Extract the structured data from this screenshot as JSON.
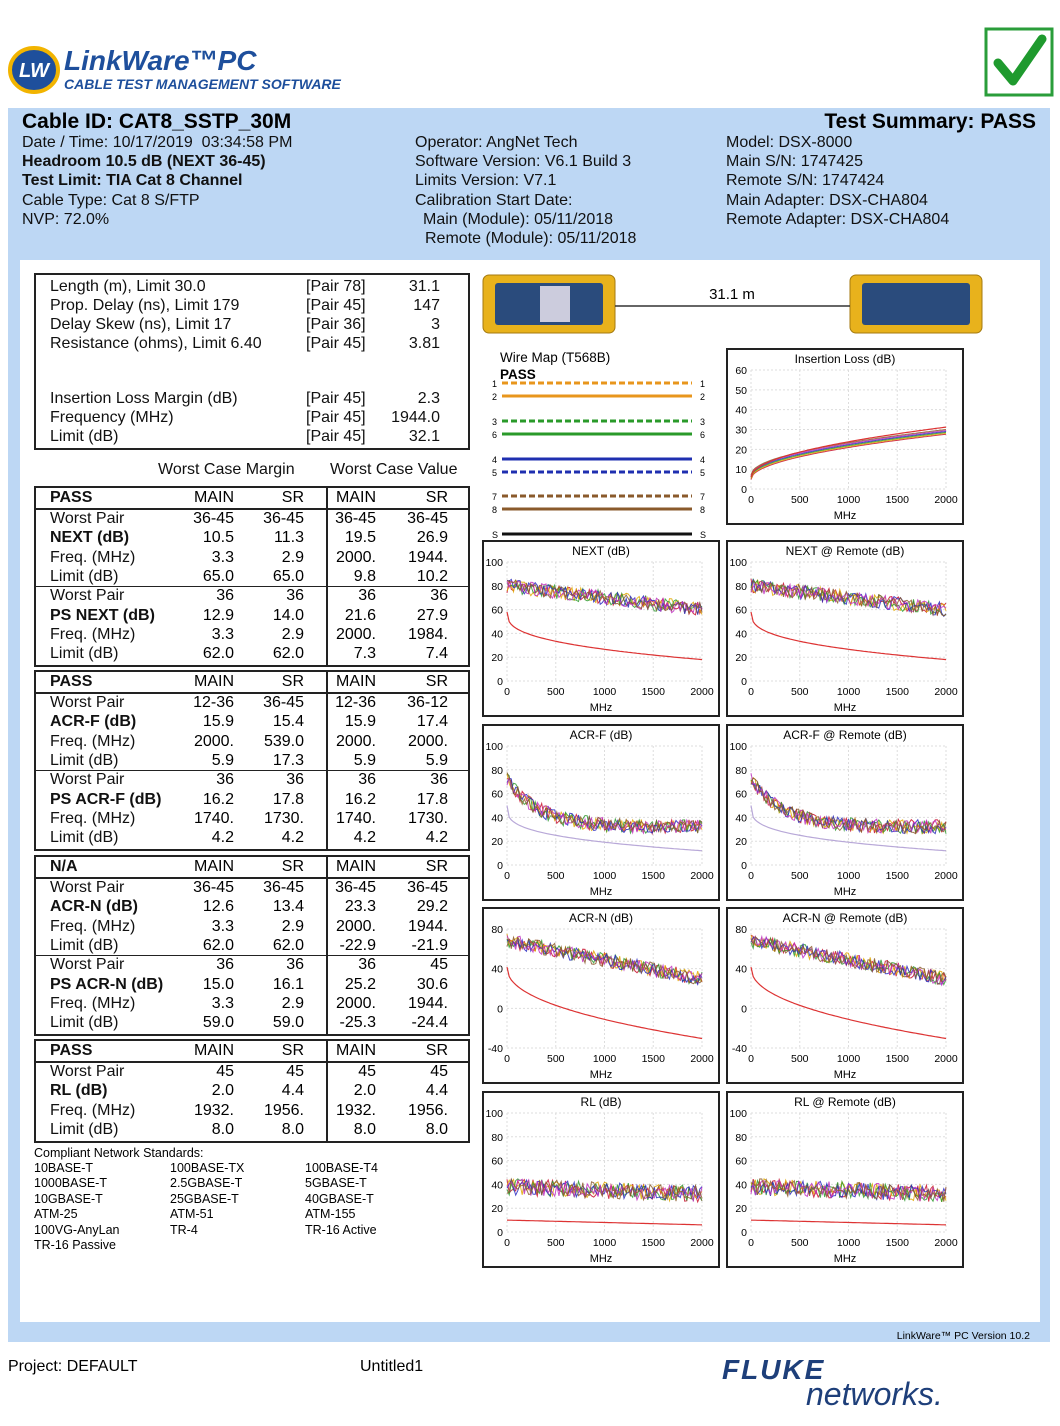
{
  "header": {
    "logo_mark": "LW",
    "product": "LinkWare™PC",
    "tagline": "CABLE TEST MANAGEMENT SOFTWARE"
  },
  "summary": {
    "cable_id": "Cable ID: CAT8_SSTP_30M",
    "result": "Test Summary: PASS",
    "left": [
      "Date / Time: 10/17/2019  03:34:58 PM",
      "Headroom 10.5 dB (NEXT 36-45)",
      "Test Limit: TIA Cat 8 Channel",
      "Cable Type: Cat 8 S/FTP",
      "NVP: 72.0%"
    ],
    "middle": [
      "Operator: AngNet Tech",
      "Software Version: V6.1 Build 3",
      "Limits Version: V7.1",
      "Calibration Start Date:",
      "Main (Module): 05/11/2018",
      "Remote (Module): 05/11/2018"
    ],
    "right": [
      "Model: DSX-8000",
      "Main S/N: 1747425",
      "Remote S/N: 1747424",
      "Main Adapter: DSX-CHA804",
      "Remote Adapter: DSX-CHA804"
    ]
  },
  "results": {
    "top": [
      [
        "Length (m), Limit 30.0",
        "[Pair 78]",
        "31.1"
      ],
      [
        "Prop. Delay (ns), Limit 179",
        "[Pair 45]",
        "147"
      ],
      [
        "Delay Skew (ns), Limit 17",
        "[Pair 36]",
        "3"
      ],
      [
        "Resistance (ohms), Limit 6.40",
        "[Pair 45]",
        "3.81"
      ]
    ],
    "bottom": [
      [
        "Insertion Loss Margin (dB)",
        "[Pair 45]",
        "2.3"
      ],
      [
        "Frequency (MHz)",
        "[Pair 45]",
        "1944.0"
      ],
      [
        "Limit (dB)",
        "[Pair 45]",
        "32.1"
      ]
    ]
  },
  "worst_case": {
    "margin": "Worst Case Margin",
    "value": "Worst Case Value"
  },
  "blocks": [
    {
      "status": "PASS",
      "columns": [
        "MAIN",
        "SR",
        "MAIN",
        "SR"
      ],
      "rows": [
        [
          "Worst Pair",
          "36-45",
          "36-45",
          "36-45",
          "36-45"
        ],
        [
          "NEXT (dB)",
          "10.5",
          "11.3",
          "19.5",
          "26.9"
        ],
        [
          "Freq. (MHz)",
          "3.3",
          "2.9",
          "2000.",
          "1944."
        ],
        [
          "Limit (dB)",
          "65.0",
          "65.0",
          "9.8",
          "10.2"
        ],
        [
          "Worst Pair",
          "36",
          "36",
          "36",
          "36"
        ],
        [
          "PS NEXT (dB)",
          "12.9",
          "14.0",
          "21.6",
          "27.9"
        ],
        [
          "Freq. (MHz)",
          "3.3",
          "2.9",
          "2000.",
          "1984."
        ],
        [
          "Limit (dB)",
          "62.0",
          "62.0",
          "7.3",
          "7.4"
        ]
      ]
    },
    {
      "status": "PASS",
      "columns": [
        "MAIN",
        "SR",
        "MAIN",
        "SR"
      ],
      "rows": [
        [
          "Worst Pair",
          "12-36",
          "36-45",
          "12-36",
          "36-12"
        ],
        [
          "ACR-F (dB)",
          "15.9",
          "15.4",
          "15.9",
          "17.4"
        ],
        [
          "Freq. (MHz)",
          "2000.",
          "539.0",
          "2000.",
          "2000."
        ],
        [
          "Limit (dB)",
          "5.9",
          "17.3",
          "5.9",
          "5.9"
        ],
        [
          "Worst Pair",
          "36",
          "36",
          "36",
          "36"
        ],
        [
          "PS ACR-F (dB)",
          "16.2",
          "17.8",
          "16.2",
          "17.8"
        ],
        [
          "Freq. (MHz)",
          "1740.",
          "1730.",
          "1740.",
          "1730."
        ],
        [
          "Limit (dB)",
          "4.2",
          "4.2",
          "4.2",
          "4.2"
        ]
      ]
    },
    {
      "status": "N/A",
      "columns": [
        "MAIN",
        "SR",
        "MAIN",
        "SR"
      ],
      "rows": [
        [
          "Worst Pair",
          "36-45",
          "36-45",
          "36-45",
          "36-45"
        ],
        [
          "ACR-N (dB)",
          "12.6",
          "13.4",
          "23.3",
          "29.2"
        ],
        [
          "Freq. (MHz)",
          "3.3",
          "2.9",
          "2000.",
          "1944."
        ],
        [
          "Limit (dB)",
          "62.0",
          "62.0",
          "-22.9",
          "-21.9"
        ],
        [
          "Worst Pair",
          "36",
          "36",
          "36",
          "45"
        ],
        [
          "PS ACR-N (dB)",
          "15.0",
          "16.1",
          "25.2",
          "30.6"
        ],
        [
          "Freq. (MHz)",
          "3.3",
          "2.9",
          "2000.",
          "1944."
        ],
        [
          "Limit (dB)",
          "59.0",
          "59.0",
          "-25.3",
          "-24.4"
        ]
      ]
    },
    {
      "status": "PASS",
      "columns": [
        "MAIN",
        "SR",
        "MAIN",
        "SR"
      ],
      "rows": [
        [
          "Worst Pair",
          "45",
          "45",
          "45",
          "45"
        ],
        [
          "RL (dB)",
          "2.0",
          "4.4",
          "2.0",
          "4.4"
        ],
        [
          "Freq. (MHz)",
          "1932.",
          "1956.",
          "1932.",
          "1956."
        ],
        [
          "Limit (dB)",
          "8.0",
          "8.0",
          "8.0",
          "8.0"
        ]
      ]
    }
  ],
  "standards": {
    "title": "Compliant Network Standards:",
    "items": [
      "10BASE-T",
      "100BASE-TX",
      "100BASE-T4",
      "1000BASE-T",
      "2.5GBASE-T",
      "5GBASE-T",
      "10GBASE-T",
      "25GBASE-T",
      "40GBASE-T",
      "ATM-25",
      "ATM-51",
      "ATM-155",
      "100VG-AnyLan",
      "TR-4",
      "TR-16 Active",
      "TR-16 Passive"
    ]
  },
  "link": {
    "length": "31.1 m"
  },
  "wire_map": {
    "title": "Wire Map (T568B)",
    "result": "PASS",
    "pins": [
      "1",
      "2",
      "3",
      "6",
      "4",
      "5",
      "7",
      "8",
      "S"
    ]
  },
  "graphs": [
    {
      "title": "Insertion Loss (dB)",
      "yticks": [
        0,
        10,
        20,
        30,
        40,
        50,
        60
      ],
      "xticks": [
        0,
        500,
        1000,
        1500,
        2000
      ],
      "xlabel": "MHz"
    },
    {
      "title": "NEXT (dB)",
      "yticks": [
        0,
        20,
        40,
        60,
        80,
        100
      ],
      "xticks": [
        0,
        500,
        1000,
        1500,
        2000
      ],
      "xlabel": "MHz"
    },
    {
      "title": "NEXT @ Remote (dB)",
      "yticks": [
        0,
        20,
        40,
        60,
        80,
        100
      ],
      "xticks": [
        0,
        500,
        1000,
        1500,
        2000
      ],
      "xlabel": "MHz"
    },
    {
      "title": "ACR-F (dB)",
      "yticks": [
        0,
        20,
        40,
        60,
        80,
        100
      ],
      "xticks": [
        0,
        500,
        1000,
        1500,
        2000
      ],
      "xlabel": "MHz"
    },
    {
      "title": "ACR-F @ Remote (dB)",
      "yticks": [
        0,
        20,
        40,
        60,
        80,
        100
      ],
      "xticks": [
        0,
        500,
        1000,
        1500,
        2000
      ],
      "xlabel": "MHz"
    },
    {
      "title": "ACR-N (dB)",
      "yticks": [
        -40,
        0,
        40,
        80
      ],
      "xticks": [
        0,
        500,
        1000,
        1500,
        2000
      ],
      "xlabel": "MHz"
    },
    {
      "title": "ACR-N @ Remote (dB)",
      "yticks": [
        -40,
        0,
        40,
        80
      ],
      "xticks": [
        0,
        500,
        1000,
        1500,
        2000
      ],
      "xlabel": "MHz"
    },
    {
      "title": "RL (dB)",
      "yticks": [
        0,
        20,
        40,
        60,
        80,
        100
      ],
      "xticks": [
        0,
        500,
        1000,
        1500,
        2000
      ],
      "xlabel": "MHz"
    },
    {
      "title": "RL @ Remote (dB)",
      "yticks": [
        0,
        20,
        40,
        60,
        80,
        100
      ],
      "xticks": [
        0,
        500,
        1000,
        1500,
        2000
      ],
      "xlabel": "MHz"
    }
  ],
  "footer": {
    "version": "LinkWare™ PC Version 10.2",
    "project": "Project: DEFAULT",
    "file": "Untitled1",
    "brand_top": "FLUKE",
    "brand_bottom": "networks."
  }
}
